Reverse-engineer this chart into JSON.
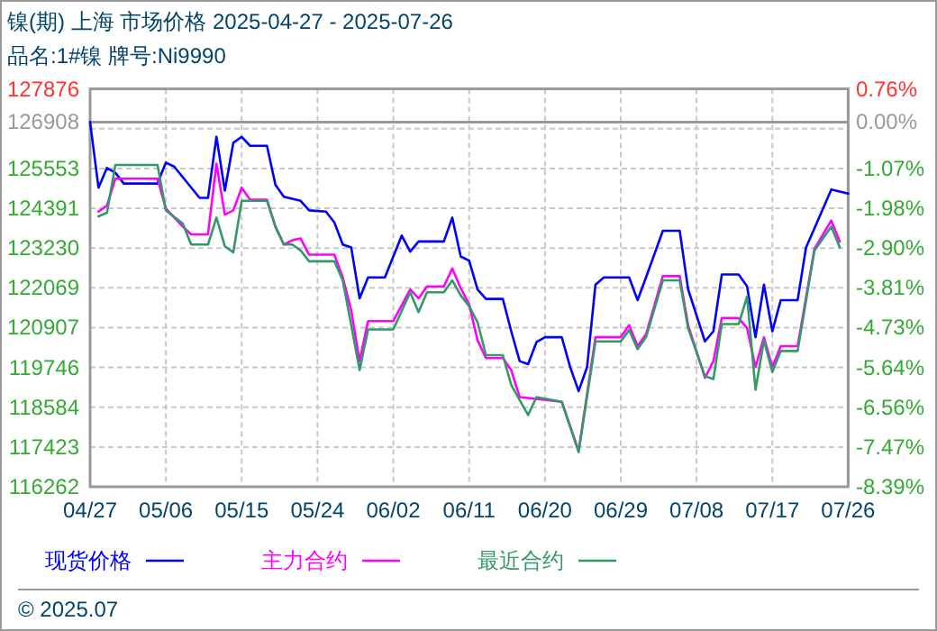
{
  "chart_data": {
    "type": "line",
    "title": "镍(期) 上海 市场价格 2025-04-27 - 2025-07-26",
    "subtitle": "品名:1#镍 牌号:Ni9990",
    "annotations": [
      "© 2025.07"
    ],
    "xlim": [
      "2025-04-27",
      "2025-07-26"
    ],
    "xticks": [
      {
        "value": "2025-04-27",
        "label": "04/27"
      },
      {
        "value": "2025-05-06",
        "label": "05/06"
      },
      {
        "value": "2025-05-15",
        "label": "05/15"
      },
      {
        "value": "2025-05-24",
        "label": "05/24"
      },
      {
        "value": "2025-06-02",
        "label": "06/02"
      },
      {
        "value": "2025-06-11",
        "label": "06/11"
      },
      {
        "value": "2025-06-20",
        "label": "06/20"
      },
      {
        "value": "2025-06-29",
        "label": "06/29"
      },
      {
        "value": "2025-07-08",
        "label": "07/08"
      },
      {
        "value": "2025-07-17",
        "label": "07/17"
      },
      {
        "value": "2025-07-26",
        "label": "07/26"
      }
    ],
    "ylim": [
      116262,
      127876
    ],
    "yticks": [
      116262,
      117423,
      118584,
      119746,
      120907,
      122069,
      123230,
      124391,
      125553,
      {
        "value": 126714.6,
        "label": null
      },
      126908,
      127876
    ],
    "y2lim": [
      -8.39,
      0.76
    ],
    "y2ticks": [
      {
        "value": -8.39,
        "label": "-8.39%"
      },
      {
        "value": -7.475,
        "label": "-7.47%"
      },
      {
        "value": -6.56,
        "label": "-6.56%"
      },
      {
        "value": -5.645,
        "label": "-5.64%"
      },
      {
        "value": -4.73,
        "label": "-4.73%"
      },
      {
        "value": -3.815,
        "label": "-3.81%"
      },
      {
        "value": -2.9,
        "label": "-2.90%"
      },
      {
        "value": -1.985,
        "label": "-1.98%"
      },
      {
        "value": -1.07,
        "label": "-1.07%"
      },
      {
        "value": 0,
        "label": "0.00%"
      },
      {
        "value": 0.76,
        "label": "0.76%"
      }
    ],
    "ref_lines": [
      {
        "axis": "y",
        "value": 126908,
        "color": "#999999"
      }
    ],
    "grid": true,
    "legend": "bottom",
    "marker": "none",
    "line_style": "solid",
    "series": [
      {
        "name": "现货价格",
        "color": "#0000ff",
        "x": [
          "2025-04-27",
          "2025-04-28",
          "2025-04-29",
          "2025-04-30",
          "2025-05-01",
          "2025-05-05",
          "2025-05-06",
          "2025-05-07",
          "2025-05-10",
          "2025-05-11",
          "2025-05-12",
          "2025-05-13",
          "2025-05-14",
          "2025-05-15",
          "2025-05-16",
          "2025-05-18",
          "2025-05-19",
          "2025-05-20",
          "2025-05-22",
          "2025-05-23",
          "2025-05-25",
          "2025-05-26",
          "2025-05-27",
          "2025-05-28",
          "2025-05-29",
          "2025-05-30",
          "2025-06-01",
          "2025-06-03",
          "2025-06-04",
          "2025-06-05",
          "2025-06-08",
          "2025-06-09",
          "2025-06-10",
          "2025-06-11",
          "2025-06-12",
          "2025-06-13",
          "2025-06-15",
          "2025-06-16",
          "2025-06-17",
          "2025-06-18",
          "2025-06-19",
          "2025-06-20",
          "2025-06-22",
          "2025-06-23",
          "2025-06-24",
          "2025-06-25",
          "2025-06-26",
          "2025-06-27",
          "2025-06-30",
          "2025-07-01",
          "2025-07-02",
          "2025-07-04",
          "2025-07-06",
          "2025-07-07",
          "2025-07-09",
          "2025-07-10",
          "2025-07-11",
          "2025-07-13",
          "2025-07-14",
          "2025-07-15",
          "2025-07-16",
          "2025-07-17",
          "2025-07-18",
          "2025-07-20",
          "2025-07-21",
          "2025-07-22",
          "2025-07-24",
          "2025-07-26"
        ],
        "values": [
          126908,
          124992,
          125568,
          125429,
          125114,
          125114,
          125725,
          125603,
          124695,
          124695,
          126476,
          124905,
          126302,
          126476,
          126214,
          126214,
          125079,
          124730,
          124608,
          124329,
          124294,
          123979,
          123333,
          123246,
          121762,
          122373,
          122373,
          123595,
          123124,
          123421,
          123421,
          124119,
          122984,
          122862,
          122024,
          121744,
          121744,
          120802,
          119929,
          119841,
          120487,
          120627,
          120627,
          119754,
          119056,
          119754,
          122163,
          122373,
          122373,
          121710,
          122373,
          123735,
          123735,
          122024,
          120505,
          120802,
          122460,
          122460,
          122111,
          120627,
          122163,
          120802,
          121710,
          121710,
          123246,
          123805,
          124940,
          124817
        ]
      },
      {
        "name": "主力合约",
        "color": "#ff00ff",
        "x": [
          "2025-04-28",
          "2025-04-29",
          "2025-04-30",
          "2025-05-05",
          "2025-05-06",
          "2025-05-08",
          "2025-05-09",
          "2025-05-11",
          "2025-05-12",
          "2025-05-13",
          "2025-05-14",
          "2025-05-15",
          "2025-05-16",
          "2025-05-18",
          "2025-05-19",
          "2025-05-20",
          "2025-05-21",
          "2025-05-22",
          "2025-05-23",
          "2025-05-26",
          "2025-05-27",
          "2025-05-28",
          "2025-05-29",
          "2025-05-30",
          "2025-06-02",
          "2025-06-04",
          "2025-06-05",
          "2025-06-06",
          "2025-06-08",
          "2025-06-09",
          "2025-06-10",
          "2025-06-11",
          "2025-06-12",
          "2025-06-13",
          "2025-06-15",
          "2025-06-16",
          "2025-06-17",
          "2025-06-22",
          "2025-06-24",
          "2025-06-26",
          "2025-06-29",
          "2025-06-30",
          "2025-07-01",
          "2025-07-02",
          "2025-07-04",
          "2025-07-06",
          "2025-07-07",
          "2025-07-09",
          "2025-07-10",
          "2025-07-11",
          "2025-07-13",
          "2025-07-14",
          "2025-07-15",
          "2025-07-16",
          "2025-07-17",
          "2025-07-18",
          "2025-07-20",
          "2025-07-22",
          "2025-07-24",
          "2025-07-25"
        ],
        "values": [
          124294,
          124468,
          125254,
          125254,
          124381,
          123857,
          123630,
          123630,
          125690,
          124206,
          124329,
          124992,
          124643,
          124643,
          123857,
          123333,
          123456,
          123508,
          123036,
          123036,
          122373,
          121413,
          119929,
          121098,
          121098,
          122024,
          121762,
          122111,
          122111,
          122635,
          122059,
          121587,
          120540,
          120016,
          120016,
          119667,
          118881,
          118741,
          117310,
          120627,
          120627,
          120976,
          120365,
          120714,
          122408,
          122408,
          120976,
          119440,
          119929,
          121186,
          121186,
          120889,
          119754,
          120627,
          119754,
          120365,
          120365,
          123211,
          124032,
          123421
        ]
      },
      {
        "name": "最近合约",
        "color": "#339966",
        "x": [
          "2025-04-28",
          "2025-04-29",
          "2025-04-30",
          "2025-05-05",
          "2025-05-06",
          "2025-05-08",
          "2025-05-09",
          "2025-05-11",
          "2025-05-12",
          "2025-05-13",
          "2025-05-14",
          "2025-05-15",
          "2025-05-18",
          "2025-05-19",
          "2025-05-20",
          "2025-05-21",
          "2025-05-22",
          "2025-05-23",
          "2025-05-26",
          "2025-05-27",
          "2025-05-28",
          "2025-05-29",
          "2025-05-30",
          "2025-06-02",
          "2025-06-04",
          "2025-06-05",
          "2025-06-06",
          "2025-06-08",
          "2025-06-09",
          "2025-06-10",
          "2025-06-11",
          "2025-06-12",
          "2025-06-13",
          "2025-06-15",
          "2025-06-16",
          "2025-06-18",
          "2025-06-19",
          "2025-06-22",
          "2025-06-24",
          "2025-06-26",
          "2025-06-29",
          "2025-06-30",
          "2025-07-01",
          "2025-07-02",
          "2025-07-04",
          "2025-07-06",
          "2025-07-07",
          "2025-07-09",
          "2025-07-10",
          "2025-07-11",
          "2025-07-13",
          "2025-07-14",
          "2025-07-15",
          "2025-07-16",
          "2025-07-17",
          "2025-07-18",
          "2025-07-20",
          "2025-07-22",
          "2025-07-24",
          "2025-07-25"
        ],
        "values": [
          124154,
          124259,
          125655,
          125655,
          124329,
          123944,
          123333,
          123333,
          124119,
          123281,
          123106,
          124608,
          124608,
          123857,
          123333,
          123333,
          123159,
          122844,
          122844,
          122286,
          120976,
          119667,
          120854,
          120854,
          121937,
          121360,
          121937,
          121937,
          122286,
          121849,
          121535,
          121063,
          120103,
          120103,
          119230,
          118357,
          118881,
          118741,
          117275,
          120505,
          120505,
          120837,
          120278,
          120627,
          122286,
          122286,
          120889,
          119492,
          119405,
          121011,
          121011,
          121814,
          119091,
          120540,
          119614,
          120225,
          120225,
          123159,
          123857,
          123246
        ]
      }
    ]
  }
}
